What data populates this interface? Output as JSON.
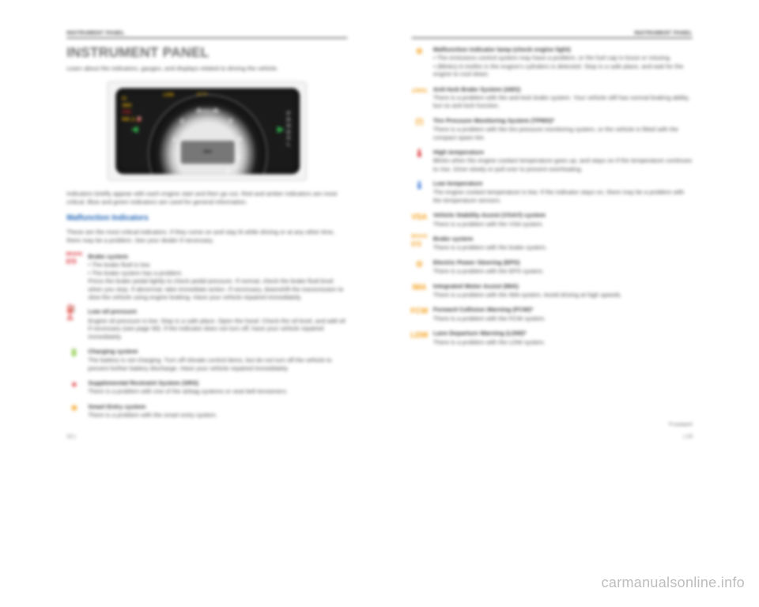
{
  "watermark": "carmanualsonline.info",
  "left": {
    "running_head": "INSTRUMENT PANEL",
    "title": "INSTRUMENT PANEL",
    "intro": "Learn about the indicators, gauges, and displays related to driving the vehicle.",
    "gauge": {
      "x1000": "x1000r/min",
      "center": "IMA",
      "numbers": [
        "1",
        "2",
        "3",
        "4",
        "5",
        "6",
        "7",
        "8"
      ],
      "gears": "P\nR\nN\nD\nS\nL",
      "ldw": "LDW",
      "fcw": "FCW",
      "warn_lines": [
        "(!)",
        "ABS",
        "VSA",
        "IMA  ⚠  ⛽"
      ]
    },
    "para1": "Indicators briefly appear with each engine start and then go out. Red and amber indicators are most critical. Blue and green indicators are used for general information.",
    "subhead": "Malfunction Indicators",
    "para2": "These are the most critical indicators. If they come on and stay lit while driving or at any other time, there may be a problem. See your dealer if necessary.",
    "items": [
      {
        "icon": "BRAKE",
        "icon2": "((!))",
        "color": "c-red",
        "label": "Brake system",
        "desc": "• The brake fluid is low.\n• The brake system has a problem.\nPress the brake pedal lightly to check pedal pressure. If normal, check the brake fluid level when you stop. If abnormal, take immediate action. If necessary, downshift the transmission to slow the vehicle using engine braking. Have your vehicle repaired immediately."
      },
      {
        "icon": "⛽⚠",
        "color": "c-red",
        "label": "Low oil pressure",
        "desc": "Engine oil pressure is low. Stop in a safe place. Open the hood. Check the oil level, and add oil if necessary (see page 99). If the indicator does not turn off, have your vehicle repaired immediately."
      },
      {
        "icon": "🔋",
        "color": "c-red",
        "label": "Charging system",
        "desc": "The battery is not charging. Turn off climate control items, but do not turn off the vehicle to prevent further battery discharge. Have your vehicle repaired immediately."
      },
      {
        "icon": "✶",
        "color": "c-red",
        "label": "Supplemental Restraint System (SRS)",
        "desc": "There is a problem with one of the airbag systems or seat belt tensioners."
      },
      {
        "icon": "⊕",
        "color": "c-amber",
        "label": "Smart Entry system",
        "desc": "There is a problem with the smart entry system."
      }
    ],
    "page_num": "12 |"
  },
  "right": {
    "running_head": "INSTRUMENT PANEL",
    "items": [
      {
        "icon": "⚙",
        "color": "c-amber",
        "label": "Malfunction indicator lamp (check engine light)",
        "desc": "• The emissions control system may have a problem, or the fuel cap is loose or missing.\n• (Blinks) A misfire in the engine's cylinders is detected. Stop in a safe place, and wait for the engine to cool down."
      },
      {
        "icon": "(ABS)",
        "color": "c-amber",
        "label": "Anti-lock Brake System (ABS)",
        "desc": "There is a problem with the anti-lock brake system. Your vehicle still has normal braking ability, but no anti-lock function."
      },
      {
        "icon": "(!)",
        "color": "c-amber",
        "label": "Tire Pressure Monitoring System (TPMS)*",
        "desc": "There is a problem with the tire pressure monitoring system, or the vehicle is fitted with the compact spare tire."
      },
      {
        "icon": "🌡",
        "color": "c-red",
        "label": "High temperature",
        "desc": "Blinks when the engine coolant temperature goes up, and stays on if the temperature continues to rise. Drive slowly or pull over to prevent overheating."
      },
      {
        "icon": "🌡",
        "color": "c-blue",
        "label": "Low temperature",
        "desc": "The engine coolant temperature is low. If the indicator stays on, there may be a problem with the temperature sensors."
      },
      {
        "icon": "VSA",
        "color": "c-amber",
        "label": "Vehicle Stability Assist (VSA®) system",
        "desc": "There is a problem with the VSA system."
      },
      {
        "icon": "BRAKE",
        "icon2": "((!))",
        "color": "c-amber",
        "label": "Brake system",
        "desc": "There is a problem with the brake system."
      },
      {
        "icon": "◎",
        "color": "c-amber",
        "label": "Electric Power Steering (EPS)",
        "desc": "There is a problem with the EPS system."
      },
      {
        "icon": "IMA",
        "color": "c-amber",
        "label": "Integrated Motor Assist (IMA)",
        "desc": "There is a problem with the IMA system. Avoid driving at high speeds."
      },
      {
        "icon": "FCW",
        "color": "c-amber",
        "label": "Forward Collision Warning (FCW)*",
        "desc": "There is a problem with the FCW system."
      },
      {
        "icon": "LDW",
        "color": "c-amber",
        "label": "Lane Departure Warning (LDW)*",
        "desc": "There is a problem with the LDW system."
      }
    ],
    "footnote": "*if equipped",
    "page_num": "| 13"
  }
}
